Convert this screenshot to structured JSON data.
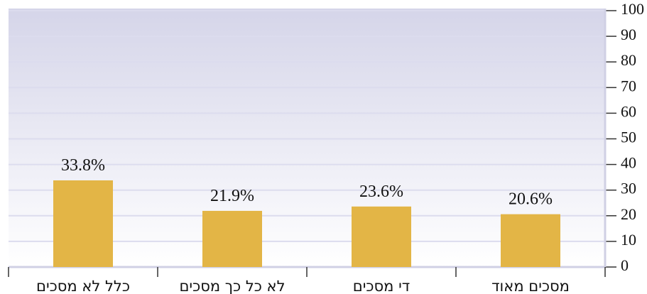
{
  "chart_data": {
    "type": "bar",
    "categories": [
      "כלל לא מסכים",
      "לא כל כך מסכים",
      "די מסכים",
      "מסכים מאוד"
    ],
    "values": [
      33.8,
      21.9,
      23.6,
      20.6
    ],
    "value_labels": [
      "33.8%",
      "21.9%",
      "23.6%",
      "20.6%"
    ],
    "color": "#e3b546",
    "ylim": [
      0,
      100
    ],
    "yticks": [
      0,
      10,
      20,
      30,
      40,
      50,
      60,
      70,
      80,
      90,
      100
    ],
    "grid": true,
    "y_axis_side": "right"
  }
}
